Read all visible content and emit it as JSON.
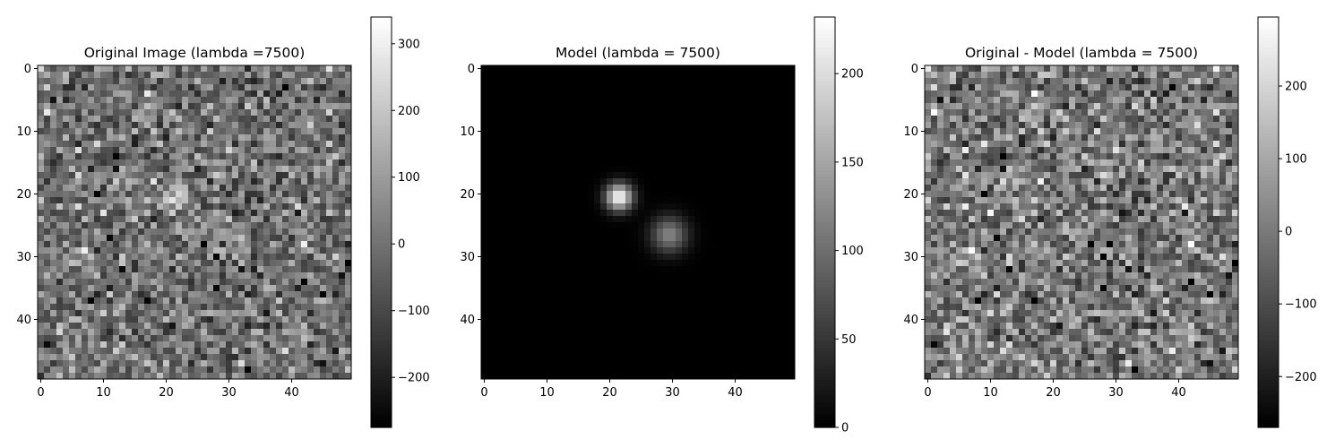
{
  "figure": {
    "background": "#ffffff"
  },
  "chart_data": [
    {
      "type": "heatmap",
      "title": "Original Image (lambda =7500)",
      "xlabel": "",
      "ylabel": "",
      "colormap": "gray",
      "grid": false,
      "x_ticks": [
        0,
        10,
        20,
        30,
        40
      ],
      "y_ticks": [
        0,
        10,
        20,
        30,
        40
      ],
      "x_tick_labels": [
        "0",
        "10",
        "20",
        "30",
        "40"
      ],
      "y_tick_labels": [
        "0",
        "10",
        "20",
        "30",
        "40"
      ],
      "image_extent": [
        -0.5,
        49.5,
        49.5,
        -0.5
      ],
      "shape": [
        50,
        50
      ],
      "content": "noise",
      "noise_sd": 90,
      "noise_seed": 7,
      "colorbar": {
        "range": [
          -275,
          340
        ],
        "ticks": [
          -200,
          -100,
          0,
          100,
          200,
          300
        ],
        "tick_labels": [
          "−200",
          "−100",
          "0",
          "100",
          "200",
          "300"
        ]
      },
      "sources": [
        {
          "x": 21.5,
          "y": 20.5,
          "peak": 230,
          "sigma": 1.5
        },
        {
          "x": 29.5,
          "y": 26.5,
          "peak": 120,
          "sigma": 2.0
        }
      ]
    },
    {
      "type": "heatmap",
      "title": "Model (lambda = 7500)",
      "xlabel": "",
      "ylabel": "",
      "colormap": "gray",
      "grid": false,
      "x_ticks": [
        0,
        10,
        20,
        30,
        40
      ],
      "y_ticks": [
        0,
        10,
        20,
        30,
        40
      ],
      "x_tick_labels": [
        "0",
        "10",
        "20",
        "30",
        "40"
      ],
      "y_tick_labels": [
        "0",
        "10",
        "20",
        "30",
        "40"
      ],
      "image_extent": [
        -0.5,
        49.5,
        49.5,
        -0.5
      ],
      "shape": [
        50,
        50
      ],
      "content": "model",
      "noise_sd": 0,
      "noise_seed": 0,
      "colorbar": {
        "range": [
          0,
          232
        ],
        "ticks": [
          0,
          50,
          100,
          150,
          200
        ],
        "tick_labels": [
          "0",
          "50",
          "100",
          "150",
          "200"
        ]
      },
      "sources": [
        {
          "x": 21.5,
          "y": 20.5,
          "peak": 230,
          "sigma": 1.5
        },
        {
          "x": 29.5,
          "y": 26.5,
          "peak": 120,
          "sigma": 2.0
        }
      ]
    },
    {
      "type": "heatmap",
      "title": "Original - Model (lambda = 7500)",
      "xlabel": "",
      "ylabel": "",
      "colormap": "gray",
      "grid": false,
      "x_ticks": [
        0,
        10,
        20,
        30,
        40
      ],
      "y_ticks": [
        0,
        10,
        20,
        30,
        40
      ],
      "x_tick_labels": [
        "0",
        "10",
        "20",
        "30",
        "40"
      ],
      "y_tick_labels": [
        "0",
        "10",
        "20",
        "30",
        "40"
      ],
      "image_extent": [
        -0.5,
        49.5,
        49.5,
        -0.5
      ],
      "shape": [
        50,
        50
      ],
      "content": "residual",
      "noise_sd": 90,
      "noise_seed": 7,
      "colorbar": {
        "range": [
          -270,
          295
        ],
        "ticks": [
          -200,
          -100,
          0,
          100,
          200
        ],
        "tick_labels": [
          "−200",
          "−100",
          "0",
          "100",
          "200"
        ]
      },
      "sources": []
    }
  ]
}
